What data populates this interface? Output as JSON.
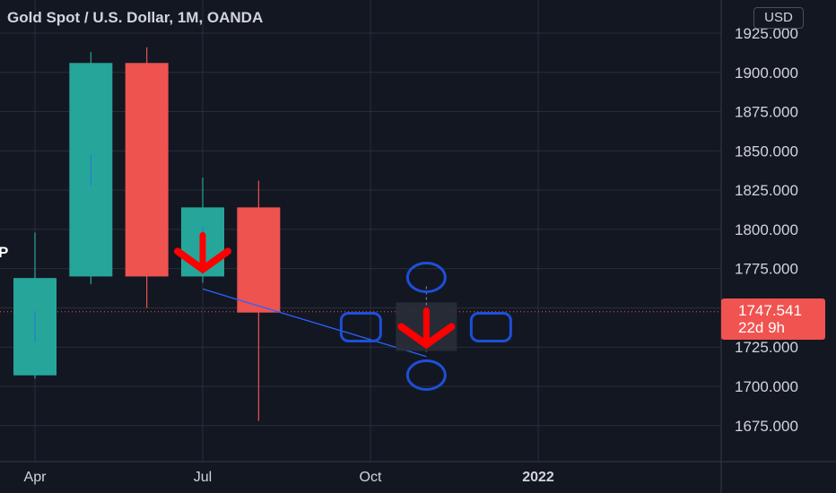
{
  "header": {
    "title": "Gold Spot / U.S. Dollar, 1M, OANDA",
    "currency": "USD"
  },
  "left_marker": "P",
  "last_price": {
    "value": "1747.541",
    "countdown": "22d 9h",
    "color": "#f05350"
  },
  "chart_data": {
    "type": "candlestick",
    "symbol": "Gold Spot / U.S. Dollar",
    "interval": "1M",
    "source": "OANDA",
    "ylim": [
      1663,
      1935
    ],
    "y_ticks": [
      "1925.000",
      "1900.000",
      "1875.000",
      "1850.000",
      "1825.000",
      "1800.000",
      "1775.000",
      "1750.000",
      "1725.000",
      "1700.000",
      "1675.000"
    ],
    "x_ticks": [
      "Apr",
      "Jul",
      "Oct",
      "2022"
    ],
    "candles": [
      {
        "month": "2021-04",
        "open": 1707,
        "high": 1798,
        "low": 1705,
        "close": 1769
      },
      {
        "month": "2021-05",
        "open": 1770,
        "high": 1913,
        "low": 1765,
        "close": 1906
      },
      {
        "month": "2021-06",
        "open": 1906,
        "high": 1916,
        "low": 1750,
        "close": 1770
      },
      {
        "month": "2021-07",
        "open": 1770,
        "high": 1833,
        "low": 1766,
        "close": 1814
      },
      {
        "month": "2021-08",
        "open": 1814,
        "high": 1831,
        "low": 1678,
        "close": 1747
      }
    ],
    "up_color": "#26a69a",
    "down_color": "#ef5350",
    "current_price": 1747.541,
    "annotations": {
      "trendline": {
        "from": {
          "month": "2021-07",
          "price": 1762
        },
        "to": {
          "month": "2021-11",
          "price": 1719
        },
        "color": "#2962ff"
      },
      "arrow_down_1": {
        "month": "2021-07",
        "price": 1786,
        "color": "#ff0000"
      },
      "arrow_down_2": {
        "month": "2021-11",
        "price": 1738,
        "color": "#ff0000"
      },
      "target_shapes": {
        "month": "2021-11",
        "price": 1738,
        "color": "#1e4fd8"
      }
    }
  }
}
